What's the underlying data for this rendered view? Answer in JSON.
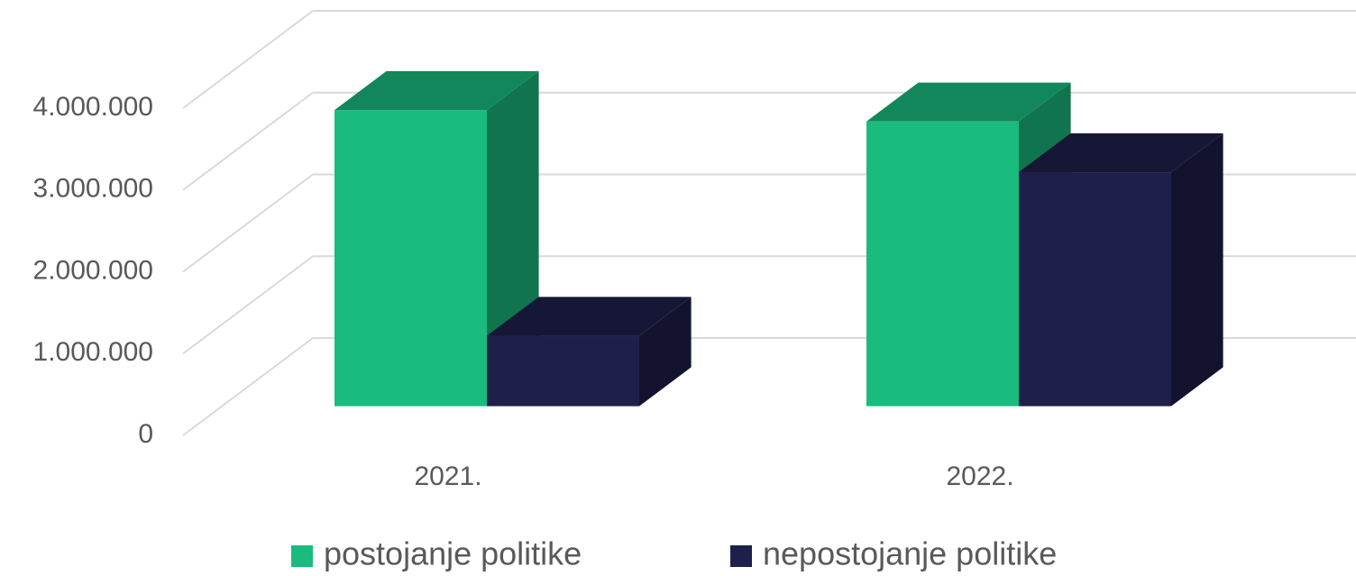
{
  "chart_data": {
    "type": "bar3d",
    "categories": [
      "2021.",
      "2022."
    ],
    "series": [
      {
        "name": "postojanje politike",
        "color": "#19bb7f",
        "values": [
          3620000,
          3480000
        ]
      },
      {
        "name": "nepostojanje politike",
        "color": "#1f1f4b",
        "values": [
          860000,
          2860000
        ]
      }
    ],
    "ylim": [
      0,
      4000000
    ],
    "yticks": [
      0,
      {
        "value": 1000000,
        "label": "1.000.000"
      },
      {
        "value": 2000000,
        "label": "2.000.000"
      },
      {
        "value": 3000000,
        "label": "3.000.000"
      },
      {
        "value": 4000000,
        "label": "4.000.000"
      }
    ],
    "grid": true,
    "legend": "bottom"
  }
}
